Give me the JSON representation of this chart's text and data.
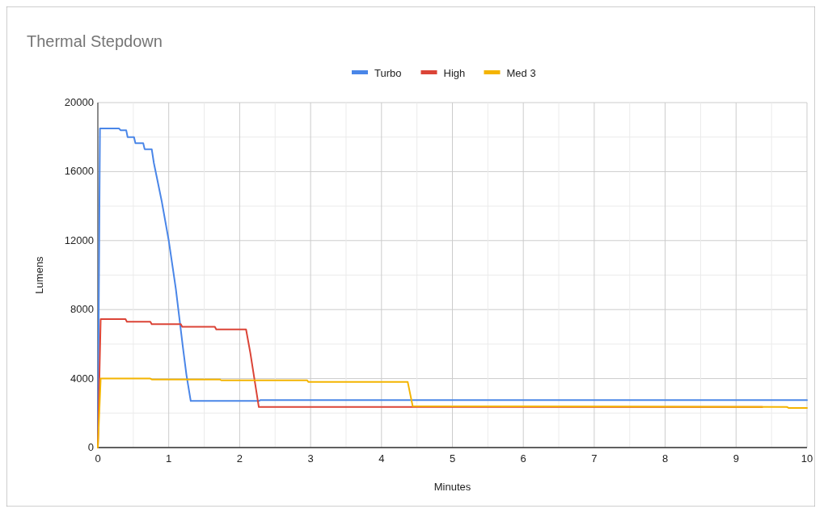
{
  "chart_data": {
    "type": "line",
    "title": "Thermal Stepdown",
    "xlabel": "Minutes",
    "ylabel": "Lumens",
    "xlim": [
      0,
      10
    ],
    "ylim": [
      0,
      20000
    ],
    "xticks": [
      0,
      {
        "value": 0.5,
        "label": null
      },
      1,
      {
        "value": 1.5,
        "label": null
      },
      2,
      {
        "value": 2.5,
        "label": null
      },
      3,
      {
        "value": 3.5,
        "label": null
      },
      4,
      {
        "value": 4.5,
        "label": null
      },
      5,
      {
        "value": 5.5,
        "label": null
      },
      6,
      {
        "value": 6.5,
        "label": null
      },
      7,
      {
        "value": 7.5,
        "label": null
      },
      8,
      {
        "value": 8.5,
        "label": null
      },
      9,
      {
        "value": 9.5,
        "label": null
      },
      10
    ],
    "yticks": [
      0,
      {
        "value": 2000,
        "label": null
      },
      4000,
      {
        "value": 6000,
        "label": null
      },
      8000,
      {
        "value": 10000,
        "label": null
      },
      12000,
      {
        "value": 14000,
        "label": null
      },
      16000,
      {
        "value": 18000,
        "label": null
      },
      20000
    ],
    "grid": true,
    "legend": "top",
    "marker": "none",
    "line_style": "solid",
    "series": [
      {
        "name": "Turbo",
        "color": "#4a86e8",
        "x": [
          0,
          0.03,
          0.3,
          0.32,
          0.4,
          0.42,
          0.51,
          0.53,
          0.64,
          0.66,
          0.76,
          0.79,
          0.83,
          0.9,
          1.0,
          1.05,
          1.1,
          1.15,
          1.2,
          1.25,
          1.31,
          2.27,
          2.29,
          10
        ],
        "values": [
          0,
          18500,
          18500,
          18400,
          18400,
          18000,
          18000,
          17650,
          17650,
          17300,
          17300,
          16500,
          15700,
          14300,
          12000,
          10600,
          9200,
          7500,
          5800,
          4200,
          2700,
          2700,
          2750,
          2750
        ]
      },
      {
        "name": "High",
        "color": "#db4437",
        "x": [
          0,
          0.04,
          0.39,
          0.41,
          0.74,
          0.76,
          1.17,
          1.19,
          1.65,
          1.67,
          2.09,
          2.15,
          2.27,
          9.37
        ],
        "values": [
          0,
          7450,
          7450,
          7300,
          7300,
          7150,
          7150,
          7000,
          7000,
          6850,
          6850,
          5500,
          2350,
          2350
        ]
      },
      {
        "name": "Med 3",
        "color": "#f4b400",
        "x": [
          0,
          0.04,
          0.74,
          0.76,
          1.72,
          1.74,
          2.95,
          2.97,
          4.37,
          4.44,
          9.72,
          9.74,
          10
        ],
        "values": [
          0,
          4000,
          4000,
          3950,
          3950,
          3900,
          3900,
          3800,
          3800,
          2400,
          2350,
          2300,
          2300
        ]
      }
    ]
  }
}
